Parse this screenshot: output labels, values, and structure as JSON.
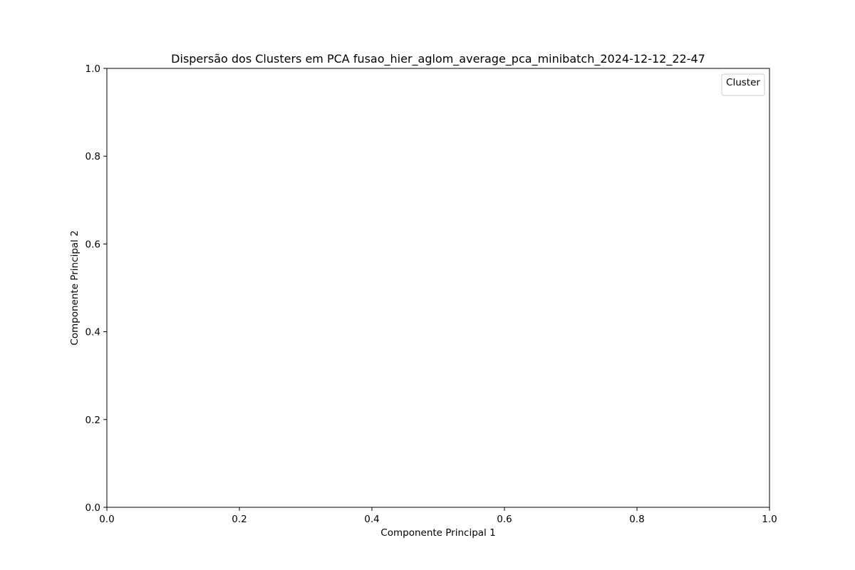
{
  "chart_data": {
    "type": "scatter",
    "title": "Dispersão dos Clusters em PCA fusao_hier_aglom_average_pca_minibatch_2024-12-12_22-47",
    "xlabel": "Componente Principal 1",
    "ylabel": "Componente Principal 2",
    "xlim": [
      0.0,
      1.0
    ],
    "ylim": [
      0.0,
      1.0
    ],
    "xticks": [
      0.0,
      0.2,
      0.4,
      0.6,
      0.8,
      1.0
    ],
    "yticks": [
      0.0,
      0.2,
      0.4,
      0.6,
      0.8,
      1.0
    ],
    "xtick_labels": [
      "0.0",
      "0.2",
      "0.4",
      "0.6",
      "0.8",
      "1.0"
    ],
    "ytick_labels": [
      "0.0",
      "0.2",
      "0.4",
      "0.6",
      "0.8",
      "1.0"
    ],
    "grid": false,
    "legend": {
      "title": "Cluster",
      "placement": "top-right",
      "entries": []
    },
    "series": []
  }
}
